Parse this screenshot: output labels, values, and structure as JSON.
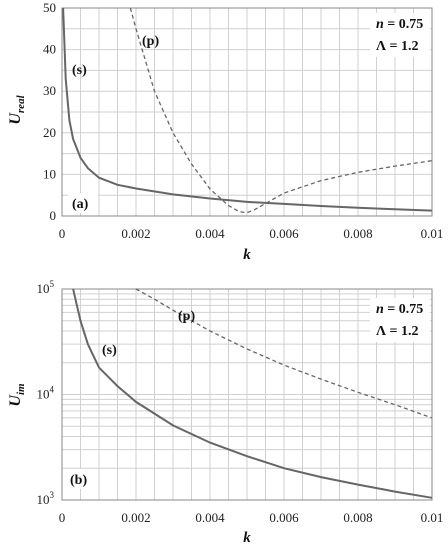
{
  "chart_data": [
    {
      "type": "line",
      "panel_label": "(a)",
      "xlabel": "k",
      "ylabel_main": "U",
      "ylabel_sub": "real",
      "xlim": [
        0,
        0.01
      ],
      "ylim": [
        0,
        50
      ],
      "x_scale": "linear",
      "y_scale": "linear",
      "grid": true,
      "x_ticks": [
        0,
        0.002,
        0.004,
        0.006,
        0.008,
        0.01
      ],
      "x_tick_labels": [
        "0",
        "0.002",
        "0.004",
        "0.006",
        "0.008",
        "0.01"
      ],
      "y_ticks": [
        0,
        10,
        20,
        30,
        40,
        50
      ],
      "y_tick_labels": [
        "0",
        "10",
        "20",
        "30",
        "40",
        "50"
      ],
      "params": {
        "n": "n = 0.75",
        "lambda": "Λ = 1.2"
      },
      "series": [
        {
          "name": "(s)",
          "style": "solid",
          "color": "#666666",
          "x": [
            3e-05,
            5e-05,
            0.0001,
            0.0002,
            0.0003,
            0.0005,
            0.0007,
            0.001,
            0.0015,
            0.002,
            0.003,
            0.004,
            0.005,
            0.006,
            0.007,
            0.008,
            0.009,
            0.01
          ],
          "y": [
            50,
            45,
            33,
            23,
            18.5,
            14,
            11.5,
            9.2,
            7.5,
            6.6,
            5.2,
            4.2,
            3.4,
            2.9,
            2.4,
            2.0,
            1.6,
            1.3
          ]
        },
        {
          "name": "(p)",
          "style": "dashed",
          "color": "#666666",
          "x": [
            0.00185,
            0.002,
            0.0025,
            0.003,
            0.0035,
            0.004,
            0.0045,
            0.0048,
            0.005,
            0.0052,
            0.0055,
            0.006,
            0.007,
            0.008,
            0.009,
            0.01
          ],
          "y": [
            50,
            45,
            30,
            20,
            12.5,
            6.5,
            2.5,
            1.0,
            0.8,
            1.5,
            3.0,
            5.5,
            8.5,
            10.5,
            12.0,
            13.3
          ]
        }
      ]
    },
    {
      "type": "line",
      "panel_label": "(b)",
      "xlabel": "k",
      "ylabel_main": "U",
      "ylabel_sub": "im",
      "xlim": [
        0,
        0.01
      ],
      "ylim": [
        1000,
        100000
      ],
      "x_scale": "linear",
      "y_scale": "log",
      "grid": true,
      "x_ticks": [
        0,
        0.002,
        0.004,
        0.006,
        0.008,
        0.01
      ],
      "x_tick_labels": [
        "0",
        "0.002",
        "0.004",
        "0.006",
        "0.008",
        "0.01"
      ],
      "y_ticks": [
        1000,
        10000,
        100000
      ],
      "y_tick_labels": [
        {
          "base": "10",
          "exp": "3"
        },
        {
          "base": "10",
          "exp": "4"
        },
        {
          "base": "10",
          "exp": "5"
        }
      ],
      "params": {
        "n": "n = 0.75",
        "lambda": "Λ = 1.2"
      },
      "series": [
        {
          "name": "(s)",
          "style": "solid",
          "color": "#666666",
          "x": [
            0.0003,
            0.0005,
            0.0007,
            0.001,
            0.0015,
            0.002,
            0.003,
            0.004,
            0.005,
            0.006,
            0.007,
            0.008,
            0.009,
            0.01
          ],
          "y": [
            100000,
            50000,
            30000,
            18000,
            12000,
            8500,
            5100,
            3500,
            2600,
            2000,
            1650,
            1400,
            1200,
            1050
          ]
        },
        {
          "name": "(p)",
          "style": "dashed",
          "color": "#666666",
          "x": [
            0.002,
            0.0025,
            0.003,
            0.004,
            0.005,
            0.006,
            0.007,
            0.008,
            0.009,
            0.01
          ],
          "y": [
            100000,
            80000,
            63000,
            40000,
            27000,
            19000,
            14000,
            10500,
            8000,
            6000
          ]
        }
      ]
    }
  ]
}
